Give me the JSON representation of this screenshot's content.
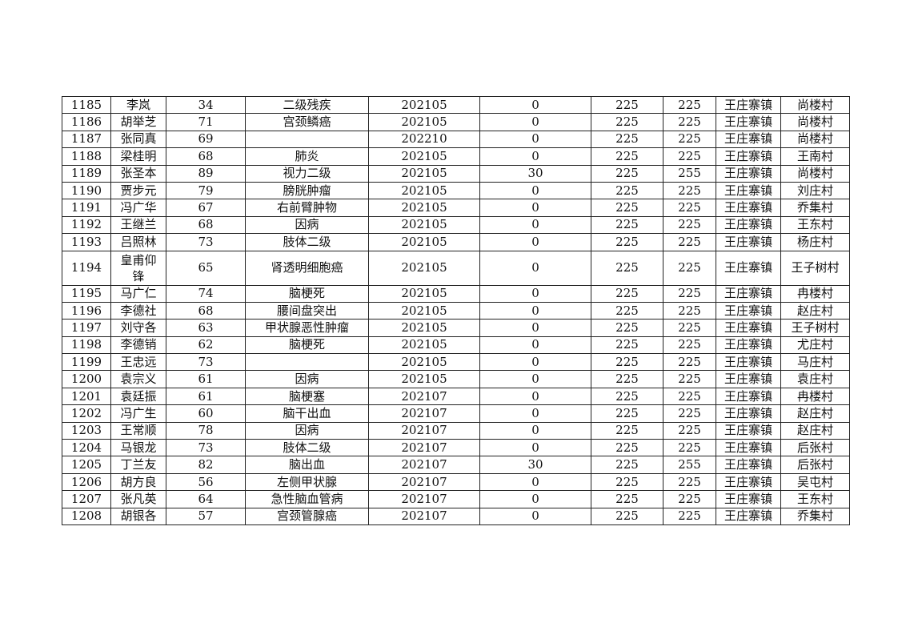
{
  "table": {
    "rows": [
      [
        "1185",
        "李岚",
        "34",
        "二级残疾",
        "202105",
        "0",
        "225",
        "225",
        "王庄寨镇",
        "尚楼村"
      ],
      [
        "1186",
        "胡举芝",
        "71",
        "宫颈鳞癌",
        "202105",
        "0",
        "225",
        "225",
        "王庄寨镇",
        "尚楼村"
      ],
      [
        "1187",
        "张同真",
        "69",
        "",
        "202210",
        "0",
        "225",
        "225",
        "王庄寨镇",
        "尚楼村"
      ],
      [
        "1188",
        "梁桂明",
        "68",
        "肺炎",
        "202105",
        "0",
        "225",
        "225",
        "王庄寨镇",
        "王南村"
      ],
      [
        "1189",
        "张圣本",
        "89",
        "视力二级",
        "202105",
        "30",
        "225",
        "255",
        "王庄寨镇",
        "尚楼村"
      ],
      [
        "1190",
        "贾步元",
        "79",
        "膀胱肿瘤",
        "202105",
        "0",
        "225",
        "225",
        "王庄寨镇",
        "刘庄村"
      ],
      [
        "1191",
        "冯广华",
        "67",
        "右前臂肿物",
        "202105",
        "0",
        "225",
        "225",
        "王庄寨镇",
        "乔集村"
      ],
      [
        "1192",
        "王继兰",
        "68",
        "因病",
        "202105",
        "0",
        "225",
        "225",
        "王庄寨镇",
        "王东村"
      ],
      [
        "1193",
        "吕照林",
        "73",
        "肢体二级",
        "202105",
        "0",
        "225",
        "225",
        "王庄寨镇",
        "杨庄村"
      ],
      [
        "1194",
        "皇甫仰锋",
        "65",
        "肾透明细胞癌",
        "202105",
        "0",
        "225",
        "225",
        "王庄寨镇",
        "王子树村"
      ],
      [
        "1195",
        "马广仁",
        "74",
        "脑梗死",
        "202105",
        "0",
        "225",
        "225",
        "王庄寨镇",
        "冉楼村"
      ],
      [
        "1196",
        "李德社",
        "68",
        "腰间盘突出",
        "202105",
        "0",
        "225",
        "225",
        "王庄寨镇",
        "赵庄村"
      ],
      [
        "1197",
        "刘守各",
        "63",
        "甲状腺恶性肿瘤",
        "202105",
        "0",
        "225",
        "225",
        "王庄寨镇",
        "王子树村"
      ],
      [
        "1198",
        "李德销",
        "62",
        "脑梗死",
        "202105",
        "0",
        "225",
        "225",
        "王庄寨镇",
        "尤庄村"
      ],
      [
        "1199",
        "王忠远",
        "73",
        "",
        "202105",
        "0",
        "225",
        "225",
        "王庄寨镇",
        "马庄村"
      ],
      [
        "1200",
        "袁宗义",
        "61",
        "因病",
        "202105",
        "0",
        "225",
        "225",
        "王庄寨镇",
        "袁庄村"
      ],
      [
        "1201",
        "袁廷振",
        "61",
        "脑梗塞",
        "202107",
        "0",
        "225",
        "225",
        "王庄寨镇",
        "冉楼村"
      ],
      [
        "1202",
        "冯广生",
        "60",
        "脑干出血",
        "202107",
        "0",
        "225",
        "225",
        "王庄寨镇",
        "赵庄村"
      ],
      [
        "1203",
        "王常顺",
        "78",
        "因病",
        "202107",
        "0",
        "225",
        "225",
        "王庄寨镇",
        "赵庄村"
      ],
      [
        "1204",
        "马银龙",
        "73",
        "肢体二级",
        "202107",
        "0",
        "225",
        "225",
        "王庄寨镇",
        "后张村"
      ],
      [
        "1205",
        "丁兰友",
        "82",
        "脑出血",
        "202107",
        "30",
        "225",
        "255",
        "王庄寨镇",
        "后张村"
      ],
      [
        "1206",
        "胡方良",
        "56",
        "左侧甲状腺",
        "202107",
        "0",
        "225",
        "225",
        "王庄寨镇",
        "吴屯村"
      ],
      [
        "1207",
        "张凡英",
        "64",
        "急性脑血管病",
        "202107",
        "0",
        "225",
        "225",
        "王庄寨镇",
        "王东村"
      ],
      [
        "1208",
        "胡银各",
        "57",
        "宫颈管腺癌",
        "202107",
        "0",
        "225",
        "225",
        "王庄寨镇",
        "乔集村"
      ]
    ]
  }
}
